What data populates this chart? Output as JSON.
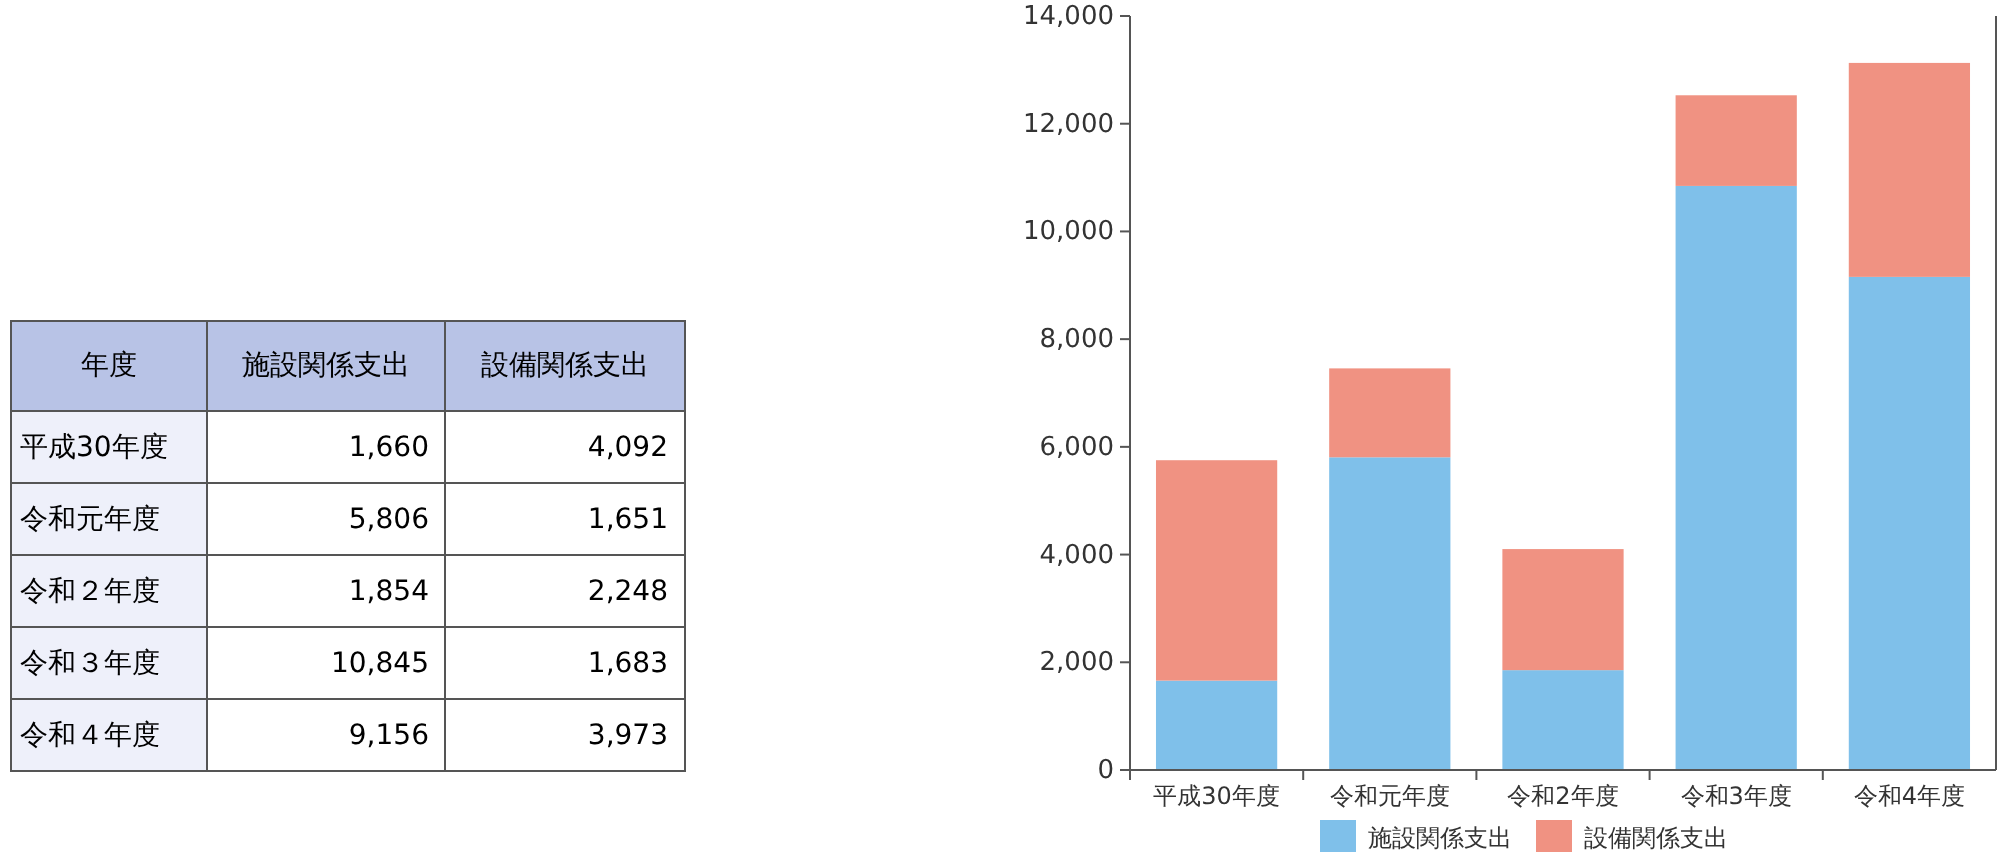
{
  "chart_data": [
    {
      "type": "other",
      "annotations": [
        "年度"
      ],
      "data_labels": true,
      "categories": [
        "平成30年度",
        "令和元年度",
        "令和２年度",
        "令和３年度",
        "令和４年度"
      ],
      "series": [
        {
          "name": "施設関係支出",
          "values": [
            1660,
            5806,
            1854,
            10845,
            9156
          ],
          "value_labels": [
            "1,660",
            "5,806",
            "1,854",
            "10,845",
            "9,156"
          ]
        },
        {
          "name": "設備関係支出",
          "values": [
            4092,
            1651,
            2248,
            1683,
            3973
          ],
          "value_labels": [
            "4,092",
            "1,651",
            "2,248",
            "1,683",
            "3,973"
          ]
        }
      ]
    },
    {
      "type": "bar",
      "stacked": true,
      "categories": [
        "平成30年度",
        "令和元年度",
        "令和2年度",
        "令和3年度",
        "令和4年度"
      ],
      "series": [
        {
          "name": "施設関係支出",
          "color": "#7fc0ea",
          "values": [
            1660,
            5806,
            1854,
            10845,
            9156
          ]
        },
        {
          "name": "設備関係支出",
          "color": "#f09282",
          "values": [
            4092,
            1651,
            2248,
            1683,
            3973
          ]
        }
      ],
      "ylim": [
        0,
        14000
      ],
      "yticks": [
        0,
        {
          "value": 2000,
          "label": "2,000"
        },
        {
          "value": 4000,
          "label": "4,000"
        },
        {
          "value": 6000,
          "label": "6,000"
        },
        {
          "value": 8000,
          "label": "8,000"
        },
        {
          "value": 10000,
          "label": "10,000"
        },
        {
          "value": 12000,
          "label": "12,000"
        },
        {
          "value": 14000,
          "label": "14,000"
        }
      ],
      "grid": false,
      "legend": "bottom"
    }
  ]
}
